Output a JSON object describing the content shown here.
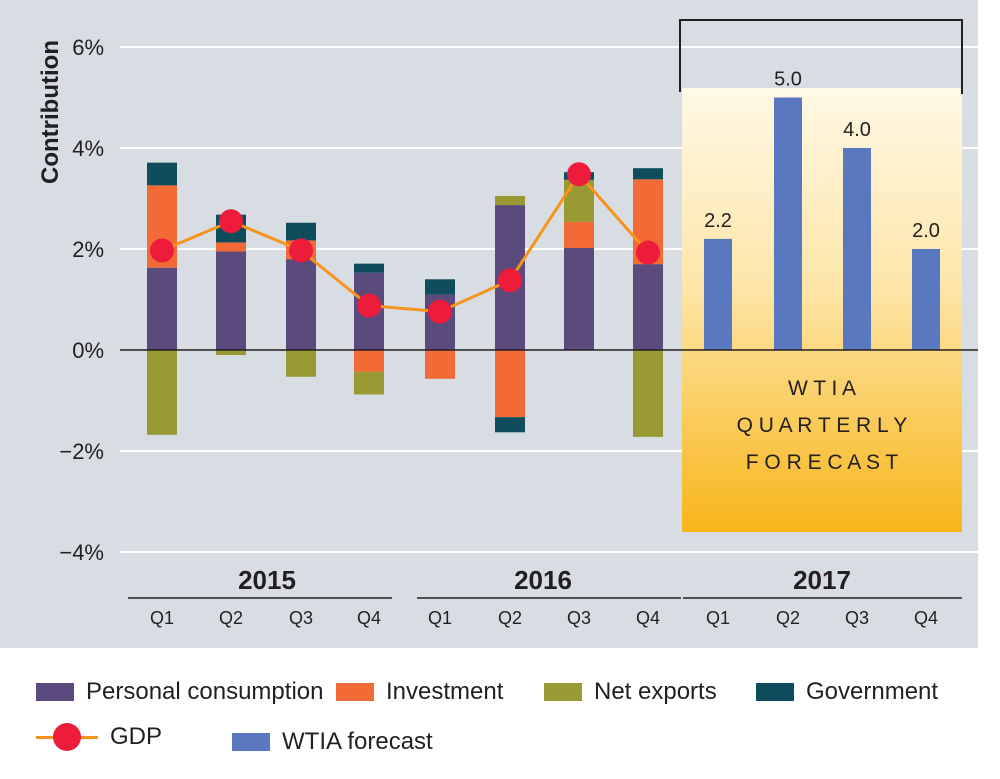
{
  "chart_data": {
    "type": "bar",
    "stacked": true,
    "ylabel": "Contribution",
    "y_unit": "%",
    "ylim": [
      -4,
      6
    ],
    "y_ticks": [
      6,
      4,
      2,
      0,
      -2,
      -4
    ],
    "y_tick_labels": [
      "6%",
      "4%",
      "2%",
      "0%",
      "−2%",
      "−4%"
    ],
    "grid": true,
    "years": [
      {
        "label": "2015",
        "quarters": [
          "Q1",
          "Q2",
          "Q3",
          "Q4"
        ]
      },
      {
        "label": "2016",
        "quarters": [
          "Q1",
          "Q2",
          "Q3",
          "Q4"
        ]
      },
      {
        "label": "2017",
        "quarters": [
          "Q1",
          "Q2",
          "Q3",
          "Q4"
        ]
      }
    ],
    "categories": [
      "2015 Q1",
      "2015 Q2",
      "2015 Q3",
      "2015 Q4",
      "2016 Q1",
      "2016 Q2",
      "2016 Q3",
      "2016 Q4"
    ],
    "series": [
      {
        "name": "Personal consumption",
        "color": "#5b4b7c",
        "values": [
          1.63,
          1.95,
          1.8,
          1.53,
          1.1,
          2.87,
          2.02,
          1.7
        ]
      },
      {
        "name": "Investment",
        "color": "#f26b36",
        "values": [
          1.63,
          0.18,
          0.37,
          -0.43,
          -0.57,
          -1.33,
          0.52,
          1.68
        ]
      },
      {
        "name": "Net exports",
        "color": "#9a9a35",
        "values": [
          -1.68,
          -0.1,
          -0.53,
          -0.45,
          0.0,
          0.18,
          0.83,
          -1.72
        ]
      },
      {
        "name": "Government",
        "color": "#0f4c5c",
        "values": [
          0.45,
          0.55,
          0.35,
          0.18,
          0.3,
          -0.3,
          0.15,
          0.22
        ]
      }
    ],
    "gdp": {
      "name": "GDP",
      "line_color": "#f7941d",
      "dot_color": "#ec1c3a",
      "values": [
        1.97,
        2.55,
        1.97,
        0.88,
        0.76,
        1.38,
        3.48,
        1.93
      ]
    },
    "forecast": {
      "name": "WTIA forecast",
      "color": "#5a78bf",
      "categories": [
        "2017 Q1",
        "2017 Q2",
        "2017 Q3",
        "2017 Q4"
      ],
      "values": [
        2.2,
        5.0,
        4.0,
        2.0
      ],
      "value_labels": [
        "2.2",
        "5.0",
        "4.0",
        "2.0"
      ],
      "panel_text": [
        "W T I A",
        "Q U A R T E R L Y",
        "F O R E C A S T"
      ]
    }
  },
  "legend": [
    {
      "label": "Personal consumption",
      "color": "#5b4b7c"
    },
    {
      "label": "Investment",
      "color": "#f26b36"
    },
    {
      "label": "Net exports",
      "color": "#9a9a35"
    },
    {
      "label": "Government",
      "color": "#0f4c5c"
    },
    {
      "label": "GDP",
      "color": "#ec1c3a"
    },
    {
      "label": "WTIA forecast",
      "color": "#5a78bf"
    }
  ],
  "colors": {
    "plot_background": "#d8dde3",
    "gridline": "#ffffff",
    "axis": "#231f20"
  }
}
